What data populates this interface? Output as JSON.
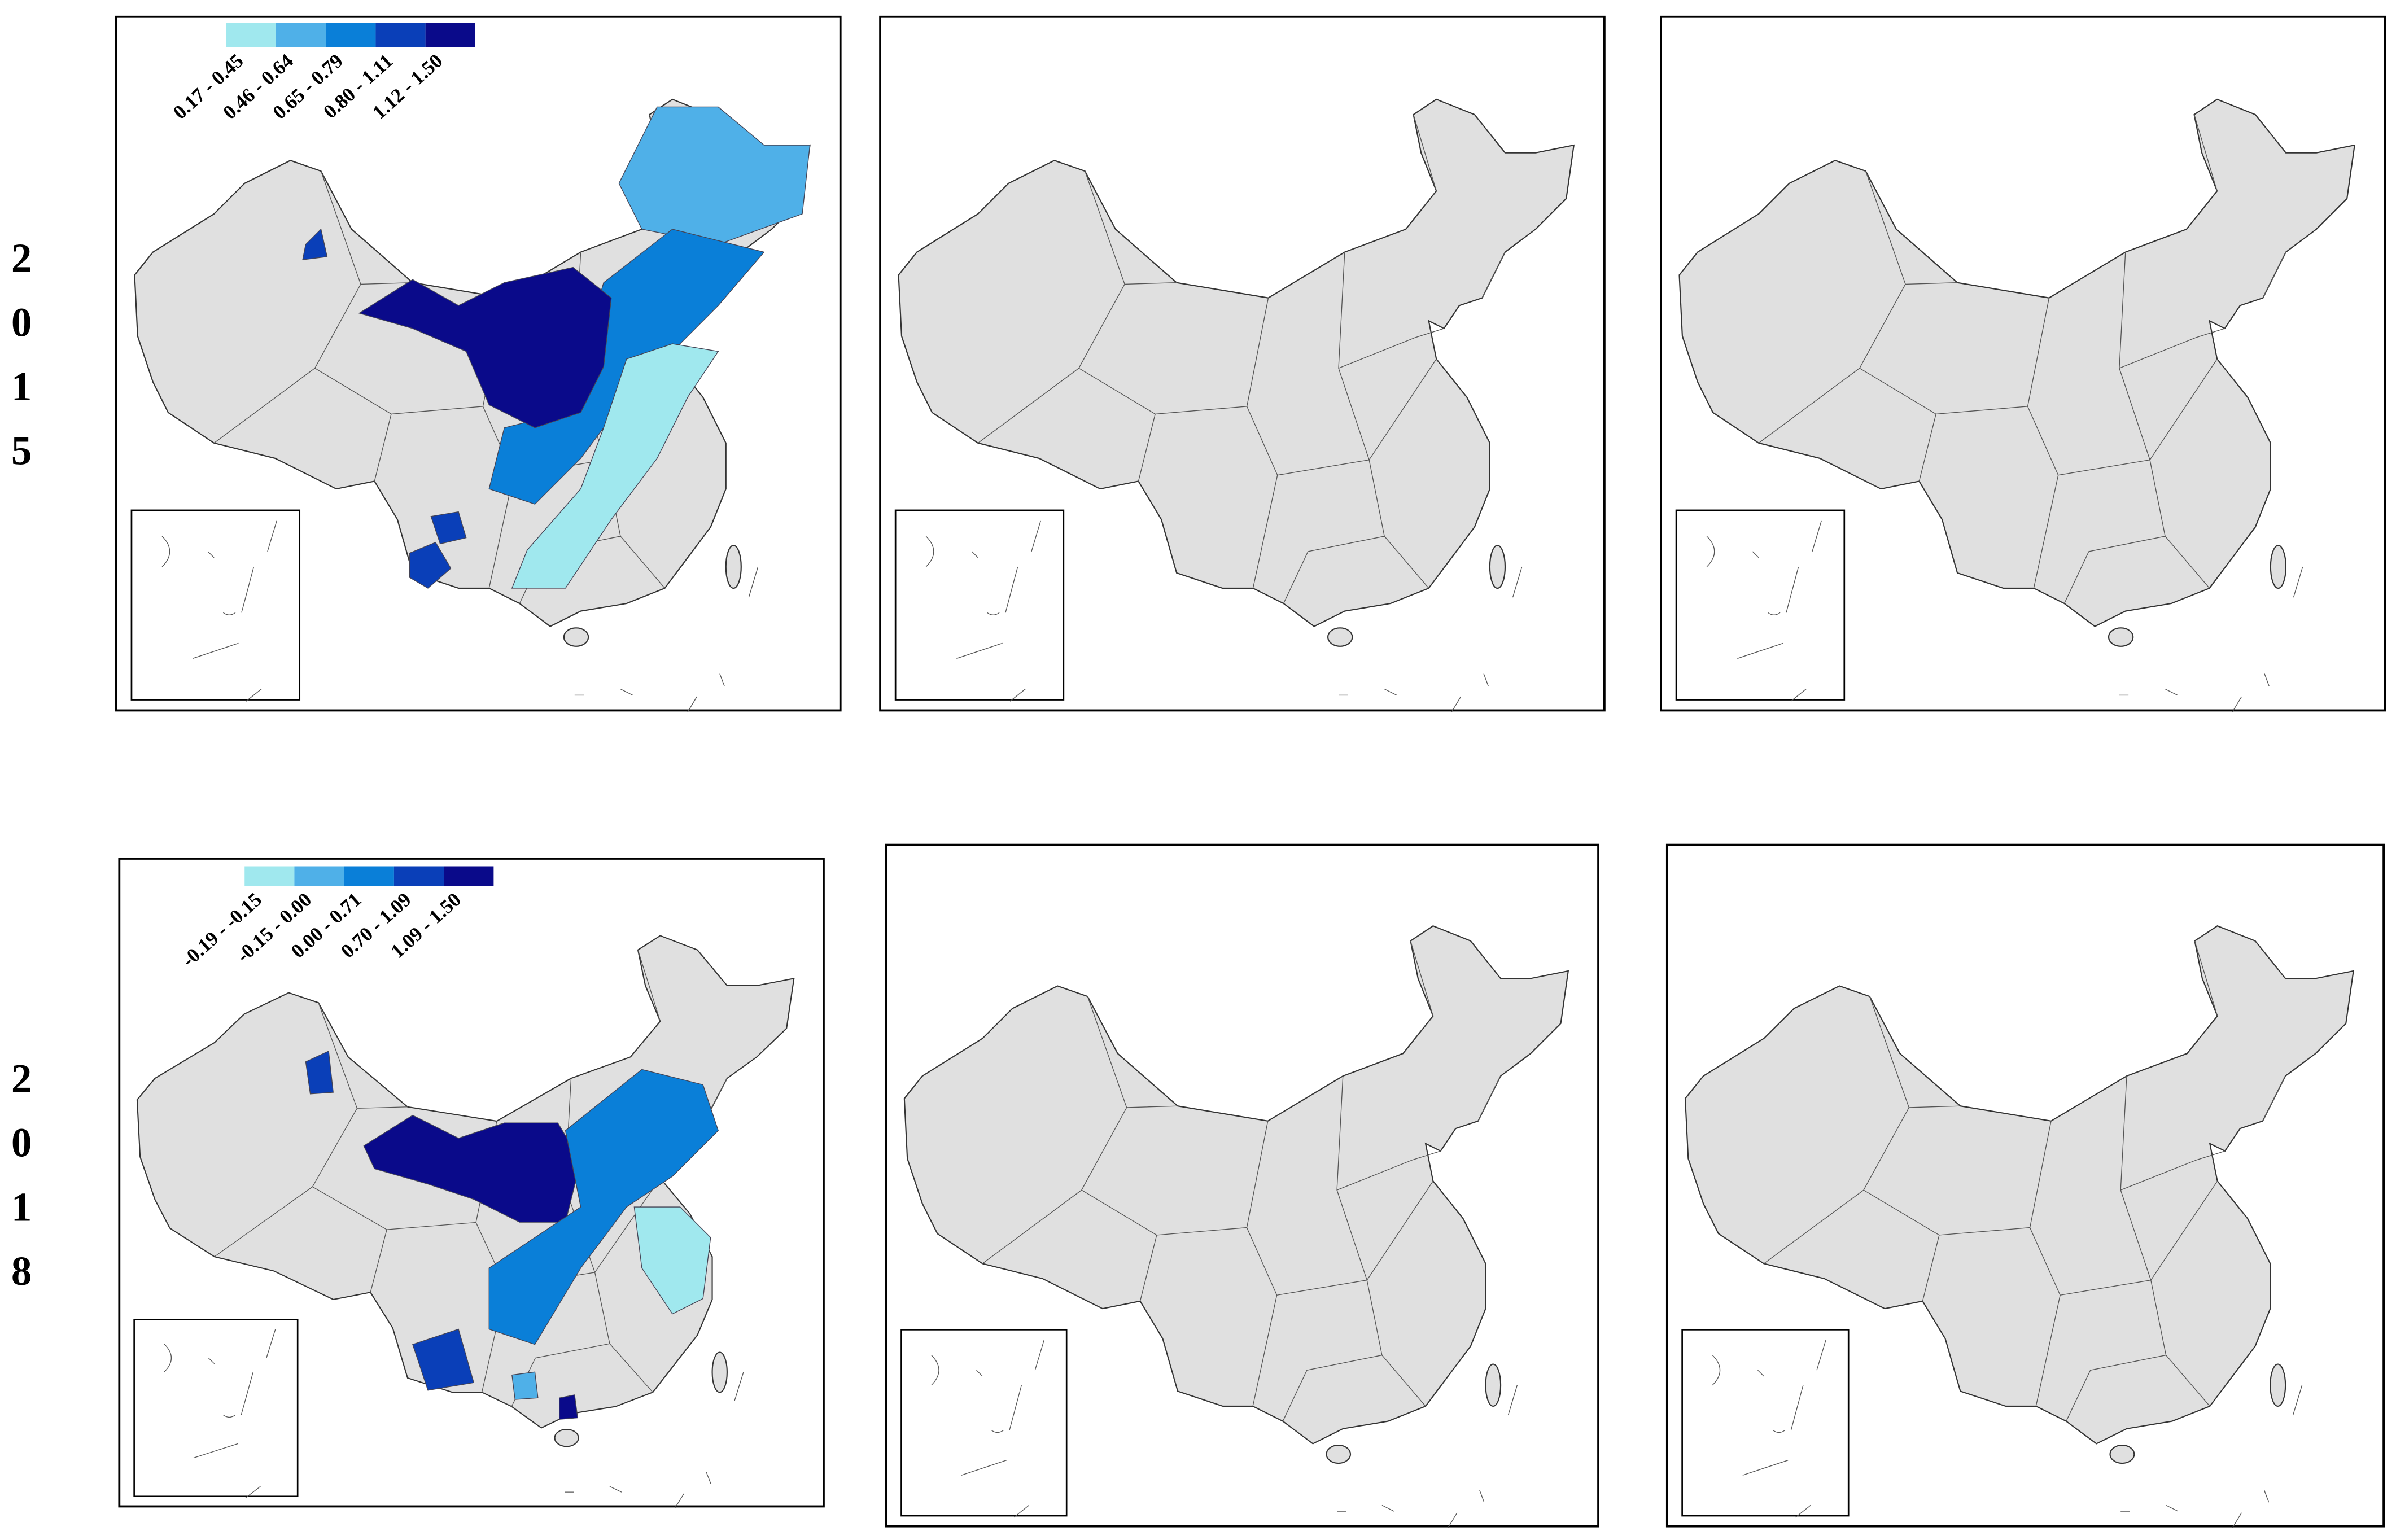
{
  "rows": [
    {
      "year_digits": [
        "2",
        "0",
        "1",
        "5"
      ],
      "legend": {
        "labels": [
          "0.17 - 0.45",
          "0.46 - 0.64",
          "0.65 - 0.79",
          "0.80 - 1.11",
          "1.12 - 1.50"
        ],
        "colors": [
          "#a0e8ee",
          "#4fb0e8",
          "#0a7fd8",
          "#0a3fb8",
          "#0a0a8a"
        ]
      }
    },
    {
      "year_digits": [
        "2",
        "0",
        "1",
        "8"
      ],
      "legend": {
        "labels": [
          "-0.19 - -0.15",
          "-0.15 - 0.00",
          "0.00 - 0.71",
          "0.70 - 1.09",
          "1.09 - 1.50"
        ],
        "colors": [
          "#a0e8ee",
          "#4fb0e8",
          "#0a7fd8",
          "#0a3fb8",
          "#0a0a8a"
        ]
      }
    }
  ]
}
